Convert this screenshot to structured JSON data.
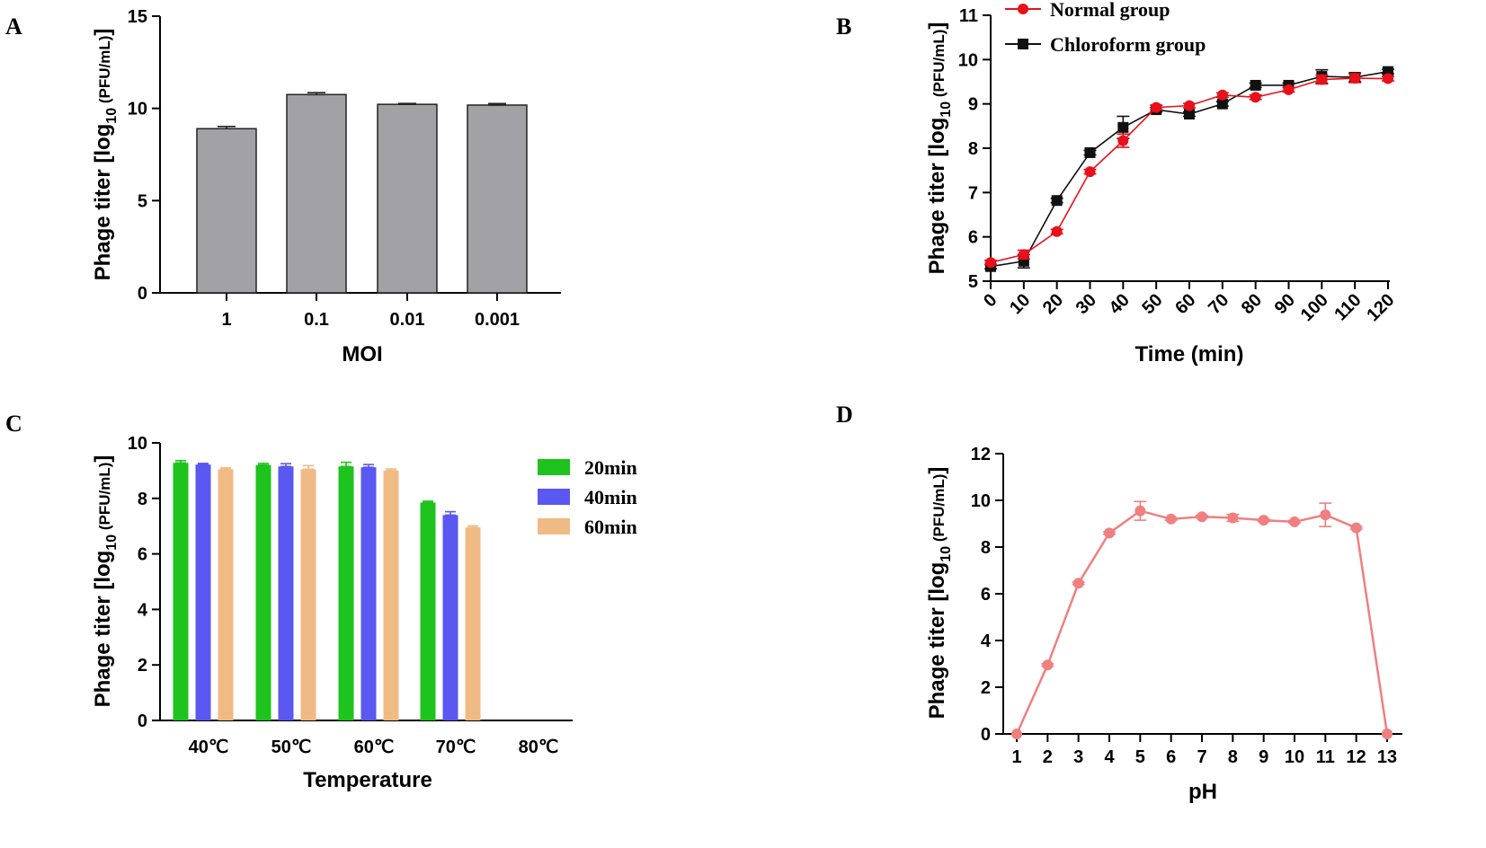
{
  "chart_data": [
    {
      "panel": "A",
      "type": "bar",
      "xlabel": "MOI",
      "ylabel_main": "Phage titer [log",
      "ylabel_sub": "10",
      "ylabel_unit": " (PFU/mL)",
      "ylabel_end": "]",
      "categories": [
        "1",
        "0.1",
        "0.01",
        "0.001"
      ],
      "values": [
        8.9,
        10.75,
        10.22,
        10.18
      ],
      "errors": [
        0.12,
        0.1,
        0.05,
        0.08
      ],
      "ylim": [
        0,
        15
      ],
      "yticks": [
        0,
        5,
        10,
        15
      ],
      "color": "#a2a2a6"
    },
    {
      "panel": "B",
      "type": "line",
      "xlabel": "Time (min)",
      "ylabel_main": "Phage titer [log",
      "ylabel_sub": "10",
      "ylabel_unit": " (PFU/mL)",
      "ylabel_end": "]",
      "x": [
        0,
        10,
        20,
        30,
        40,
        50,
        60,
        70,
        80,
        90,
        100,
        110,
        120
      ],
      "xtick_labels": [
        "0",
        "10",
        "20",
        "30",
        "40",
        "50",
        "60",
        "70",
        "80",
        "90",
        "100",
        "110",
        "120"
      ],
      "ylim": [
        5,
        11
      ],
      "yticks": [
        5,
        6,
        7,
        8,
        9,
        10,
        11
      ],
      "series": [
        {
          "name": "Normal group",
          "marker": "circle",
          "color": "#e8101a",
          "values": [
            5.42,
            5.6,
            6.12,
            7.47,
            8.17,
            8.92,
            8.96,
            9.2,
            9.15,
            9.32,
            9.55,
            9.58,
            9.57
          ],
          "errors": [
            0.05,
            0.1,
            0.05,
            0.05,
            0.15,
            0.05,
            0.05,
            0.05,
            0.05,
            0.05,
            0.1,
            0.1,
            0.05
          ]
        },
        {
          "name": "Chloroform group",
          "marker": "square",
          "color": "#111111",
          "values": [
            5.33,
            5.45,
            6.82,
            7.9,
            8.47,
            8.87,
            8.77,
            9.0,
            9.42,
            9.42,
            9.62,
            9.6,
            9.73
          ],
          "errors": [
            0.05,
            0.15,
            0.05,
            0.05,
            0.25,
            0.05,
            0.05,
            0.05,
            0.05,
            0.05,
            0.15,
            0.1,
            0.05
          ]
        }
      ]
    },
    {
      "panel": "C",
      "type": "bar",
      "xlabel": "Temperature",
      "ylabel_main": "Phage titer [log",
      "ylabel_sub": "10",
      "ylabel_unit": " (PFU/mL)",
      "ylabel_end": "]",
      "categories": [
        "40℃",
        "50℃",
        "60℃",
        "70℃",
        "80℃"
      ],
      "ylim": [
        0,
        10
      ],
      "yticks": [
        0,
        2,
        4,
        6,
        8,
        10
      ],
      "series": [
        {
          "name": "20min",
          "color": "#1ec31e",
          "values": [
            9.28,
            9.2,
            9.15,
            7.85,
            0
          ],
          "errors": [
            0.08,
            0.06,
            0.15,
            0.05,
            0
          ]
        },
        {
          "name": "40min",
          "color": "#5a58f0",
          "values": [
            9.22,
            9.15,
            9.12,
            7.4,
            0
          ],
          "errors": [
            0.04,
            0.1,
            0.1,
            0.12,
            0
          ]
        },
        {
          "name": "60min",
          "color": "#f0ba85",
          "values": [
            9.05,
            9.05,
            9.0,
            6.95,
            0
          ],
          "errors": [
            0.05,
            0.13,
            0.06,
            0.06,
            0
          ]
        }
      ]
    },
    {
      "panel": "D",
      "type": "line",
      "xlabel": "pH",
      "ylabel_main": "Phage titer [log",
      "ylabel_sub": "10",
      "ylabel_unit": " (PFU/mL)",
      "ylabel_end": "]",
      "x": [
        1,
        2,
        3,
        4,
        5,
        6,
        7,
        8,
        9,
        10,
        11,
        12,
        13
      ],
      "xtick_labels": [
        "1",
        "2",
        "3",
        "4",
        "5",
        "6",
        "7",
        "8",
        "9",
        "10",
        "11",
        "12",
        "13"
      ],
      "ylim": [
        0,
        12
      ],
      "yticks": [
        0,
        2,
        4,
        6,
        8,
        10,
        12
      ],
      "series": [
        {
          "name": "pH",
          "marker": "circle",
          "color": "#f07f80",
          "values": [
            0,
            2.95,
            6.45,
            8.6,
            9.55,
            9.2,
            9.3,
            9.25,
            9.15,
            9.08,
            9.38,
            8.82,
            0
          ],
          "errors": [
            0,
            0.05,
            0.05,
            0.05,
            0.4,
            0.05,
            0.05,
            0.15,
            0.05,
            0.05,
            0.5,
            0.05,
            0
          ]
        }
      ]
    }
  ]
}
